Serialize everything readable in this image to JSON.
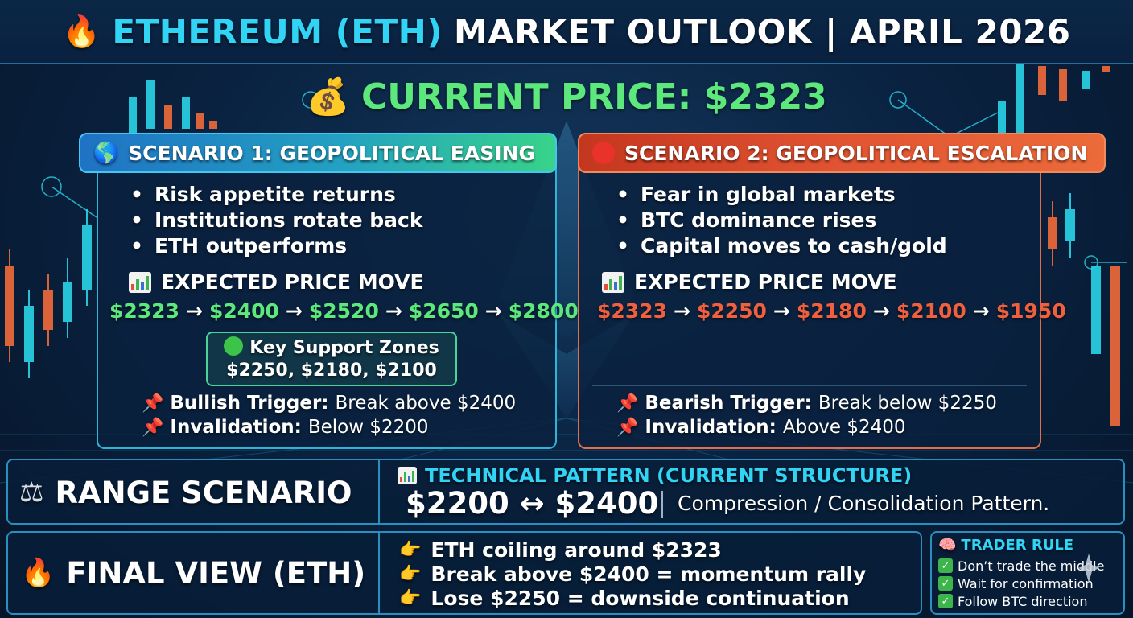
{
  "header": {
    "icon": "fire-icon",
    "title_highlight": "ETHEREUM (ETH)",
    "title_rest": "MARKET OUTLOOK | APRIL 2026"
  },
  "current_price": {
    "icon": "money-bag-icon",
    "label": "CURRENT PRICE: $2323"
  },
  "scenario1": {
    "icon": "globe-icon",
    "title": "SCENARIO 1: GEOPOLITICAL EASING",
    "bullets": [
      "Risk appetite returns",
      "Institutions rotate back",
      "ETH outperforms"
    ],
    "expected_label": "EXPECTED PRICE MOVE",
    "path": [
      "$2323",
      "$2400",
      "$2520",
      "$2650",
      "$2800"
    ],
    "arrow": "→",
    "support_title": "Key Support Zones",
    "support_values": "$2250, $2180, $2100",
    "trigger_label": "Bullish Trigger:",
    "trigger_value": "Break above $2400",
    "invalidation_label": "Invalidation:",
    "invalidation_value": "Below $2200"
  },
  "scenario2": {
    "icon": "red-circle-icon",
    "title": "SCENARIO 2: GEOPOLITICAL ESCALATION",
    "bullets": [
      "Fear in global markets",
      "BTC dominance rises",
      "Capital moves to cash/gold"
    ],
    "expected_label": "EXPECTED PRICE MOVE",
    "path": [
      "$2323",
      "$2250",
      "$2180",
      "$2100",
      "$1950"
    ],
    "arrow": "→",
    "trigger_label": "Bearish Trigger:",
    "trigger_value": "Break below $2250",
    "invalidation_label": "Invalidation:",
    "invalidation_value": "Above $2400"
  },
  "range": {
    "icon": "scales-icon",
    "label": "RANGE SCENARIO",
    "pattern_title": "TECHNICAL PATTERN (CURRENT STRUCTURE)",
    "range_value": "$2200 ↔ $2400",
    "pattern_desc": "Compression / Consolidation Pattern."
  },
  "final_view": {
    "icon": "fire-icon",
    "label": "FINAL VIEW (ETH)",
    "lines": [
      "ETH coiling around $2323",
      "Break above $2400 = momentum rally",
      "Lose $2250 = downside continuation"
    ]
  },
  "trader_rule": {
    "icon": "brain-icon",
    "title": "TRADER RULE",
    "items": [
      "Don’t trade the middle",
      "Wait for confirmation",
      "Follow BTC direction"
    ]
  },
  "colors": {
    "cyan": "#31d4f5",
    "bullish_green": "#5ce87c",
    "bearish_red": "#f0603f",
    "background": "#0a2342"
  }
}
